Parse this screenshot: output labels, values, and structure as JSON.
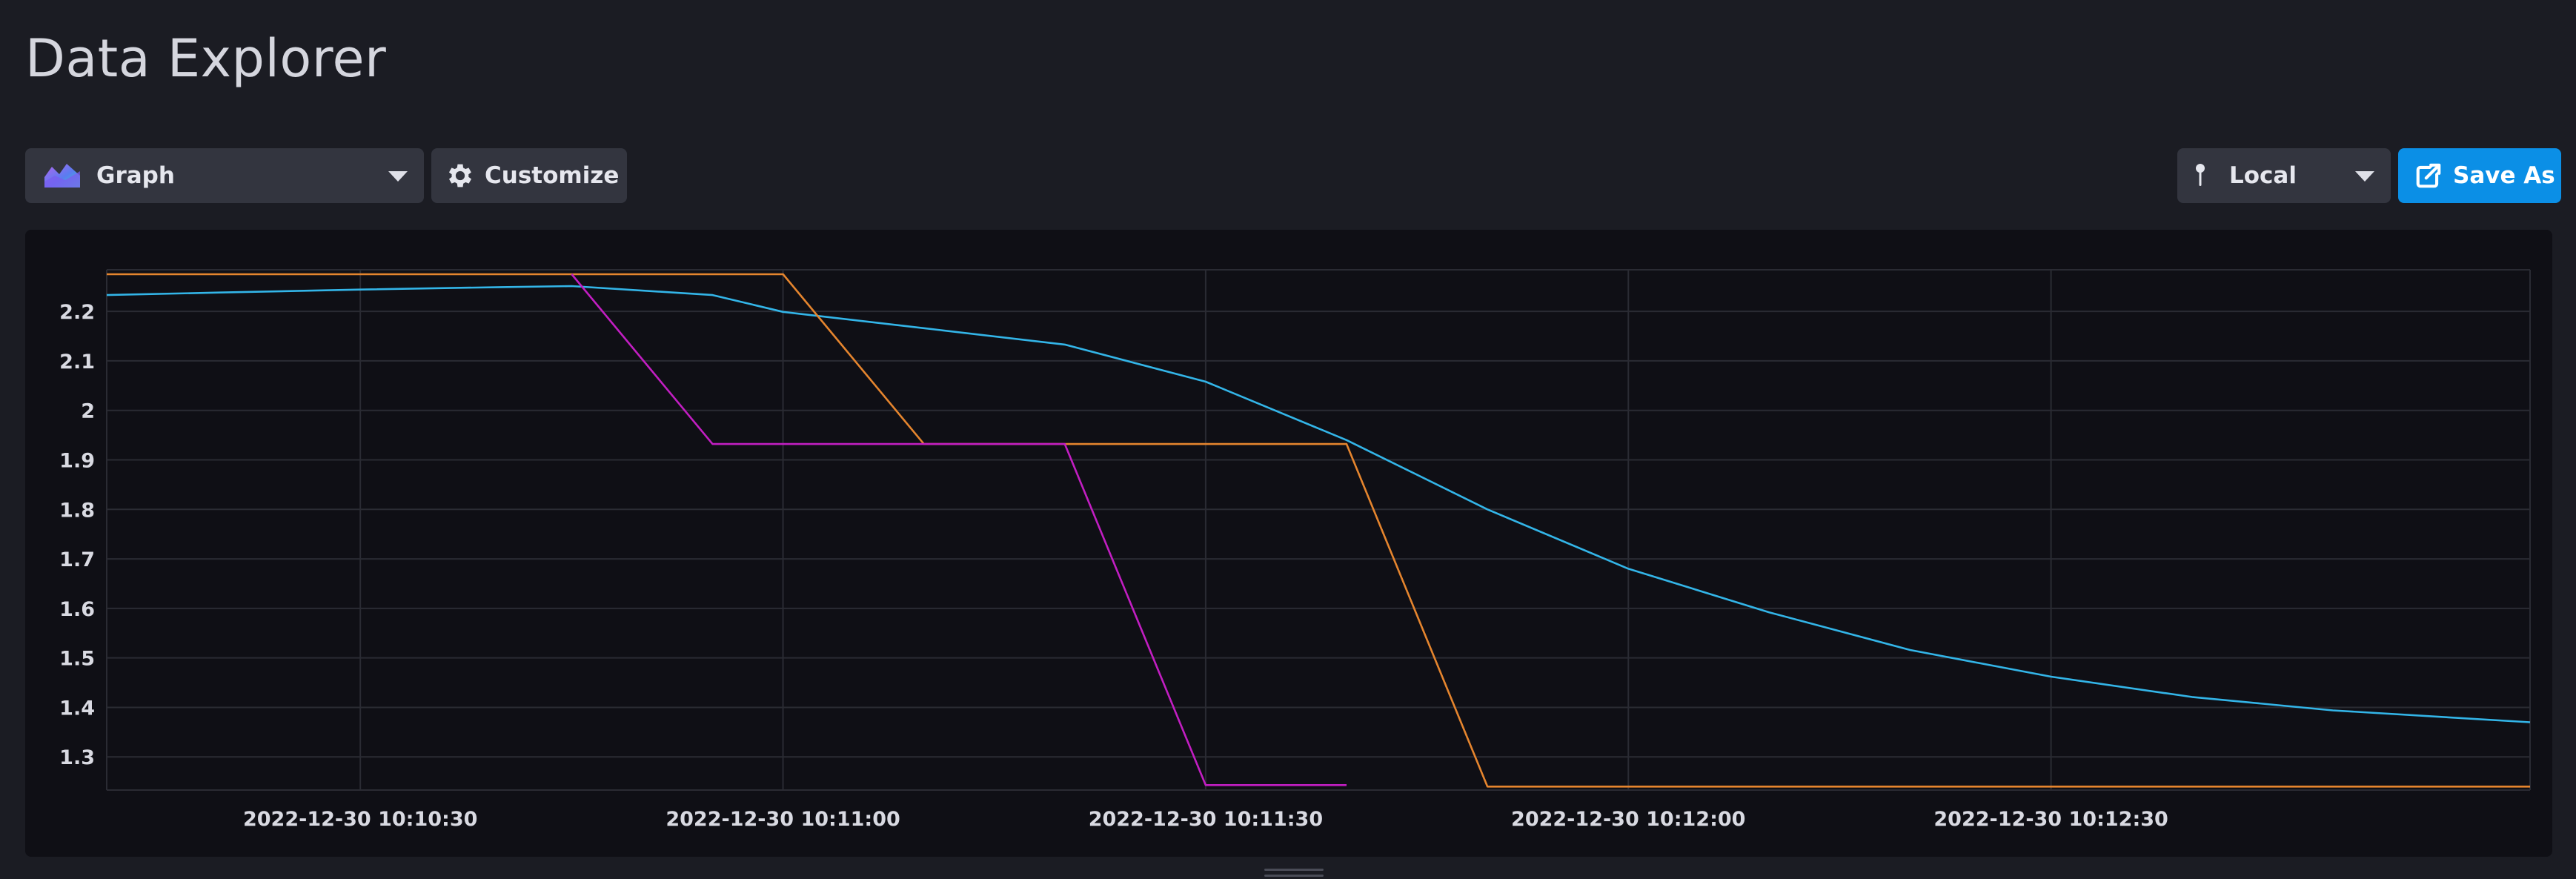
{
  "page": {
    "title": "Data Explorer"
  },
  "toolbar": {
    "visualization": {
      "label": "Graph",
      "icon": "graph-icon"
    },
    "customize": {
      "label": "Customize",
      "icon": "gear-icon"
    },
    "timezone": {
      "label": "Local",
      "icon": "pin-icon"
    },
    "save_as": {
      "label": "Save As",
      "icon": "export-icon"
    }
  },
  "colors": {
    "background": "#1b1c23",
    "panel": "#0f0f15",
    "grid": "#2a2b33",
    "tick_text": "#d9dae2",
    "button": "#33353f",
    "primary_button": "#0b8fe6"
  },
  "chart_data": {
    "type": "line",
    "title": "",
    "xlabel": "",
    "ylabel": "",
    "grid": true,
    "xlim": [
      "2022-12-30 10:10:12",
      "2022-12-30 10:13:04"
    ],
    "ylim": [
      1.233,
      2.284
    ],
    "x_ticks": [
      "2022-12-30 10:10:30",
      "2022-12-30 10:11:00",
      "2022-12-30 10:11:30",
      "2022-12-30 10:12:00",
      "2022-12-30 10:12:30"
    ],
    "y_ticks": [
      1.3,
      1.4,
      1.5,
      1.6,
      1.7,
      1.8,
      1.9,
      2,
      2.1,
      2.2
    ],
    "series": [
      {
        "color": "#33b5e8",
        "points": [
          [
            "2022-12-30 10:10:12",
            2.233
          ],
          [
            "2022-12-30 10:10:20",
            2.238
          ],
          [
            "2022-12-30 10:10:30",
            2.244
          ],
          [
            "2022-12-30 10:10:40",
            2.249
          ],
          [
            "2022-12-30 10:10:45",
            2.251
          ],
          [
            "2022-12-30 10:10:55",
            2.233
          ],
          [
            "2022-12-30 10:11:00",
            2.199
          ],
          [
            "2022-12-30 10:11:10",
            2.166
          ],
          [
            "2022-12-30 10:11:20",
            2.133
          ],
          [
            "2022-12-30 10:11:30",
            2.058
          ],
          [
            "2022-12-30 10:11:40",
            1.94
          ],
          [
            "2022-12-30 10:11:50",
            1.8
          ],
          [
            "2022-12-30 10:12:00",
            1.68
          ],
          [
            "2022-12-30 10:12:10",
            1.592
          ],
          [
            "2022-12-30 10:12:20",
            1.516
          ],
          [
            "2022-12-30 10:12:30",
            1.462
          ],
          [
            "2022-12-30 10:12:40",
            1.421
          ],
          [
            "2022-12-30 10:12:50",
            1.394
          ],
          [
            "2022-12-30 10:13:04",
            1.37
          ]
        ]
      },
      {
        "color": "#e5852e",
        "points": [
          [
            "2022-12-30 10:10:12",
            2.275
          ],
          [
            "2022-12-30 10:11:00",
            2.275
          ],
          [
            "2022-12-30 10:11:10",
            1.932
          ],
          [
            "2022-12-30 10:11:40",
            1.932
          ],
          [
            "2022-12-30 10:11:50",
            1.24
          ],
          [
            "2022-12-30 10:13:04",
            1.24
          ]
        ]
      },
      {
        "color": "#c21ec2",
        "points": [
          [
            "2022-12-30 10:10:45",
            2.275
          ],
          [
            "2022-12-30 10:10:55",
            1.932
          ],
          [
            "2022-12-30 10:11:20",
            1.932
          ],
          [
            "2022-12-30 10:11:30",
            1.243
          ],
          [
            "2022-12-30 10:11:40",
            1.243
          ]
        ]
      }
    ]
  }
}
